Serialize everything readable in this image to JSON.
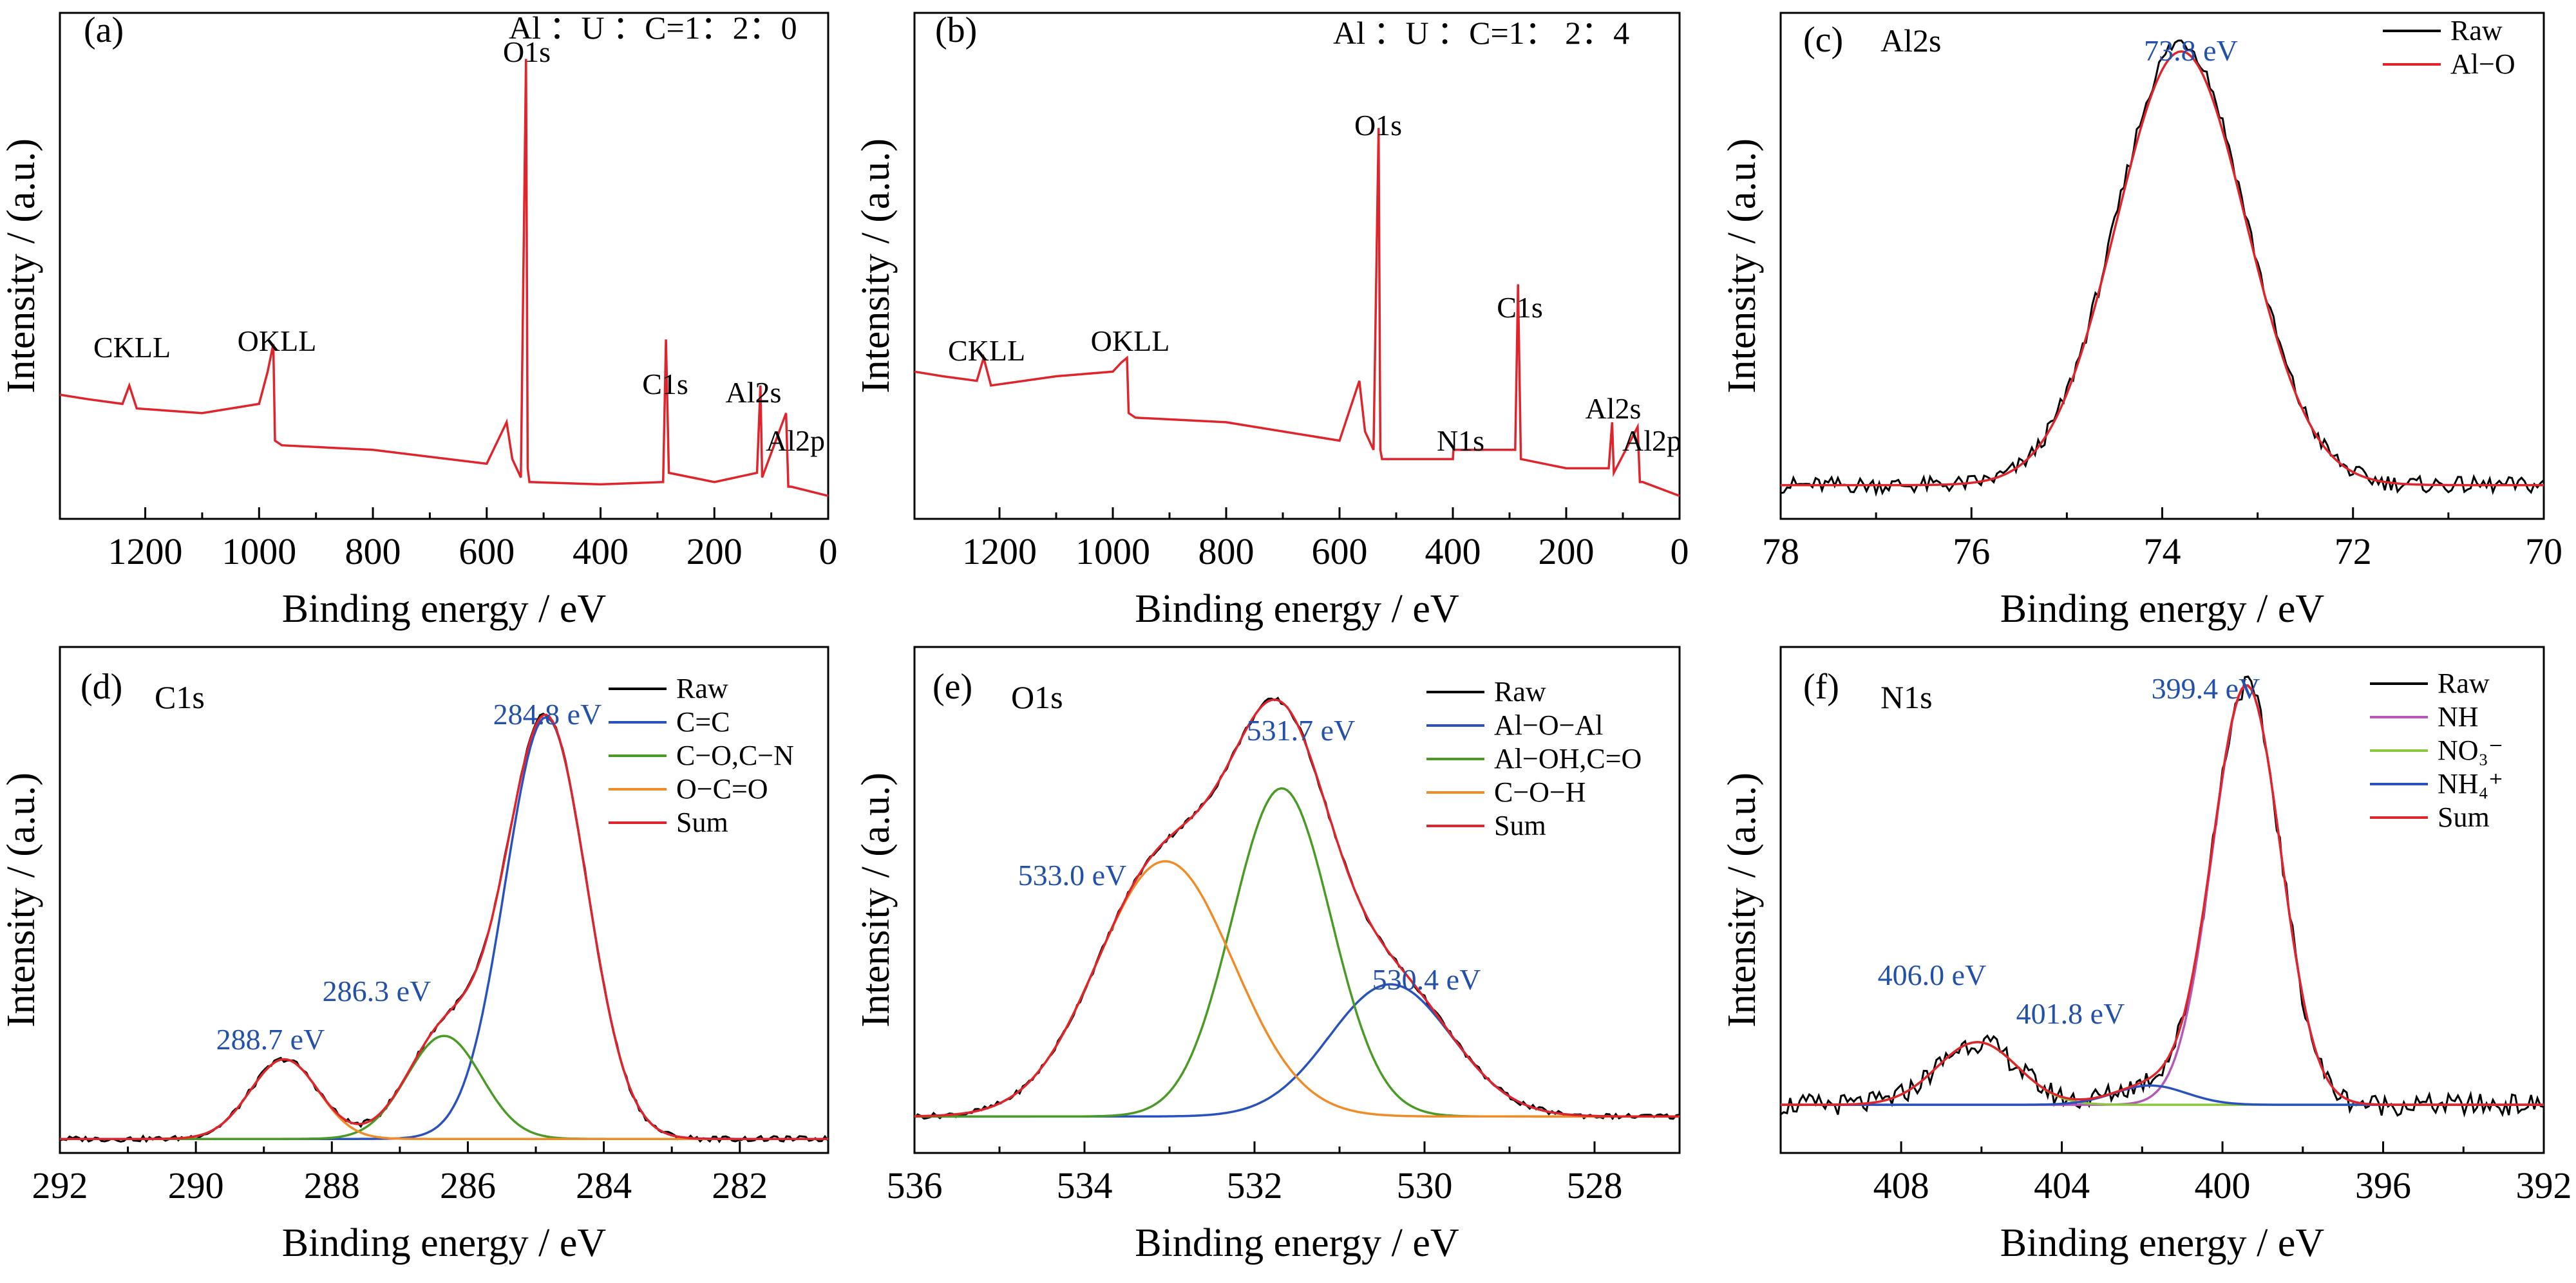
{
  "chart_data": [
    {
      "panel": "(a)",
      "type": "line",
      "annotation": "Al ：U ：C=1：2：0",
      "xlabel": "Binding energy / eV",
      "ylabel": "Intensity / (a.u.)",
      "xlim": [
        1350,
        0
      ],
      "xticks": [
        1200,
        1000,
        800,
        600,
        400,
        200,
        0
      ],
      "peak_labels": [
        "CKLL",
        "OKLL",
        "O1s",
        "C1s",
        "Al2s",
        "Al2p"
      ],
      "series": [
        {
          "color": "#e0242c",
          "x": [
            1350,
            1300,
            1240,
            1228,
            1215,
            1100,
            1000,
            985,
            975,
            972,
            960,
            800,
            600,
            565,
            555,
            540,
            531,
            528,
            525,
            400,
            290,
            285,
            280,
            200,
            125,
            119,
            116,
            74,
            70,
            65,
            0
          ],
          "y": [
            0.22,
            0.21,
            0.2,
            0.24,
            0.19,
            0.18,
            0.2,
            0.27,
            0.33,
            0.12,
            0.11,
            0.1,
            0.07,
            0.16,
            0.08,
            0.04,
            0.95,
            0.06,
            0.03,
            0.025,
            0.03,
            0.34,
            0.05,
            0.03,
            0.05,
            0.24,
            0.04,
            0.18,
            0.02,
            0.02,
            0.0
          ]
        }
      ]
    },
    {
      "panel": "(b)",
      "type": "line",
      "annotation": "Al ：U ：C=1：  2：4",
      "xlabel": "Binding energy / eV",
      "ylabel": "Intensity / (a.u.)",
      "xlim": [
        1350,
        0
      ],
      "xticks": [
        1200,
        1000,
        800,
        600,
        400,
        200,
        0
      ],
      "peak_labels": [
        "CKLL",
        "OKLL",
        "N1s",
        "O1s",
        "C1s",
        "Al2s",
        "Al2p"
      ],
      "series": [
        {
          "color": "#e0242c",
          "x": [
            1350,
            1300,
            1240,
            1228,
            1215,
            1100,
            1000,
            985,
            975,
            972,
            960,
            800,
            600,
            565,
            555,
            540,
            531,
            528,
            525,
            400,
            399,
            290,
            285,
            280,
            200,
            125,
            119,
            116,
            74,
            70,
            65,
            0
          ],
          "y": [
            0.27,
            0.26,
            0.25,
            0.3,
            0.24,
            0.26,
            0.27,
            0.29,
            0.3,
            0.18,
            0.17,
            0.16,
            0.12,
            0.25,
            0.14,
            0.1,
            0.8,
            0.1,
            0.08,
            0.08,
            0.1,
            0.1,
            0.46,
            0.08,
            0.06,
            0.06,
            0.16,
            0.05,
            0.15,
            0.03,
            0.03,
            0.0
          ]
        }
      ]
    },
    {
      "panel": "(c)",
      "type": "line",
      "annotation": "Al2s",
      "xlabel": "Binding energy / eV",
      "ylabel": "Intensity / (a.u.)",
      "xlim": [
        78,
        70
      ],
      "xticks": [
        78,
        76,
        74,
        72,
        70
      ],
      "peaks": [
        {
          "label": "73.8 eV",
          "x": 73.8
        }
      ],
      "series": [
        {
          "name": "Raw",
          "color": "#000000",
          "kind": "noisy",
          "amp": 0.92,
          "center": 73.8,
          "sigma": 0.68,
          "base": 0.07
        },
        {
          "name": "Al−O",
          "color": "#e0242c",
          "kind": "gauss",
          "amp": 0.9,
          "center": 73.8,
          "sigma": 0.68,
          "base": 0.07
        }
      ]
    },
    {
      "panel": "(d)",
      "type": "line",
      "annotation": "C1s",
      "xlabel": "Binding energy / eV",
      "ylabel": "Intensity / (a.u.)",
      "xlim": [
        292,
        280.7
      ],
      "xticks": [
        292,
        290,
        288,
        286,
        284,
        282
      ],
      "peaks": [
        {
          "label": "284.8 eV",
          "x": 284.8
        },
        {
          "label": "286.3 eV",
          "x": 286.3
        },
        {
          "label": "288.7 eV",
          "x": 288.7
        }
      ],
      "series": [
        {
          "name": "Raw",
          "color": "#000000",
          "kind": "noisy_sum"
        },
        {
          "name": "C=C",
          "color": "#2a52be",
          "kind": "gauss",
          "amp": 0.9,
          "center": 284.85,
          "sigma": 0.6,
          "base": 0.0
        },
        {
          "name": "C−O,C−N",
          "color": "#4a9a26",
          "kind": "gauss",
          "amp": 0.22,
          "center": 286.35,
          "sigma": 0.55,
          "base": 0.0
        },
        {
          "name": "O−C=O",
          "color": "#f08c28",
          "kind": "gauss",
          "amp": 0.17,
          "center": 288.7,
          "sigma": 0.5,
          "base": 0.0
        },
        {
          "name": "Sum",
          "color": "#e0242c",
          "kind": "sum"
        }
      ]
    },
    {
      "panel": "(e)",
      "type": "line",
      "annotation": "O1s",
      "xlabel": "Binding energy / eV",
      "ylabel": "Intensity / (a.u.)",
      "xlim": [
        536,
        527
      ],
      "xticks": [
        536,
        534,
        532,
        530,
        528
      ],
      "peaks": [
        {
          "label": "531.7 eV",
          "x": 531.7
        },
        {
          "label": "533.0 eV",
          "x": 533.0
        },
        {
          "label": "530.4 eV",
          "x": 530.4
        }
      ],
      "series": [
        {
          "name": "Raw",
          "color": "#000000",
          "kind": "noisy_sum"
        },
        {
          "name": "Al−O−Al",
          "color": "#2a52be",
          "kind": "gauss",
          "amp": 0.29,
          "center": 530.4,
          "sigma": 0.72,
          "base": 0.02
        },
        {
          "name": "Al−OH,C=O",
          "color": "#4a9a26",
          "kind": "gauss",
          "amp": 0.72,
          "center": 531.68,
          "sigma": 0.58,
          "base": 0.02
        },
        {
          "name": "C−O−H",
          "color": "#f08c28",
          "kind": "gauss",
          "amp": 0.56,
          "center": 533.05,
          "sigma": 0.8,
          "base": 0.02
        },
        {
          "name": "Sum",
          "color": "#e0242c",
          "kind": "sum"
        }
      ]
    },
    {
      "panel": "(f)",
      "type": "line",
      "annotation": "N1s",
      "xlabel": "Binding energy / eV",
      "ylabel": "Intensity / (a.u.)",
      "xlim": [
        411,
        392
      ],
      "xticks": [
        408,
        404,
        400,
        396,
        392
      ],
      "peaks": [
        {
          "label": "399.4 eV",
          "x": 399.4
        },
        {
          "label": "406.0 eV",
          "x": 406.0
        },
        {
          "label": "401.8 eV",
          "x": 401.8
        }
      ],
      "series": [
        {
          "name": "Raw",
          "color": "#000000",
          "kind": "noisy_sum"
        },
        {
          "name": "NH",
          "color": "#b558b8",
          "kind": "gauss",
          "amp": 0.87,
          "center": 399.4,
          "sigma": 0.85,
          "base": 0.1
        },
        {
          "name": "NO₃⁻",
          "color": "#8cc63f",
          "kind": "gauss",
          "amp": 0.13,
          "center": 406.1,
          "sigma": 1.0,
          "base": 0.1
        },
        {
          "name": "NH₄⁺",
          "color": "#2a52be",
          "kind": "gauss",
          "amp": 0.04,
          "center": 401.8,
          "sigma": 0.9,
          "base": 0.1
        },
        {
          "name": "Sum",
          "color": "#e0242c",
          "kind": "sum"
        }
      ]
    }
  ]
}
